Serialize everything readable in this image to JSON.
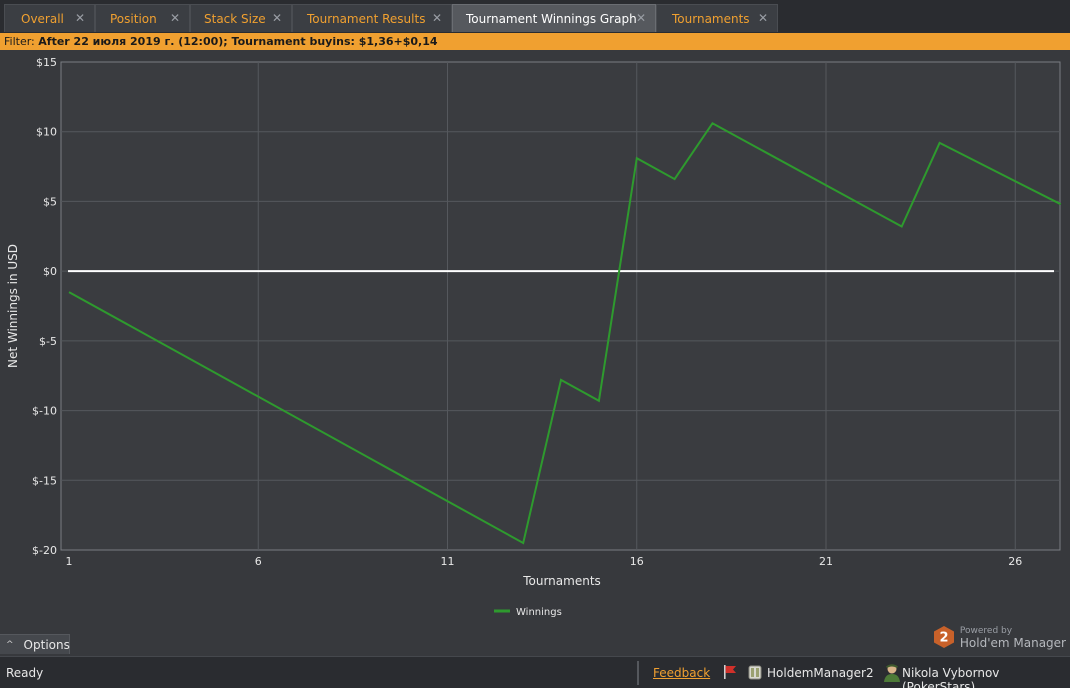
{
  "tabs": [
    {
      "label": "Overall",
      "active": false
    },
    {
      "label": "Position",
      "active": false
    },
    {
      "label": "Stack Size",
      "active": false
    },
    {
      "label": "Tournament Results",
      "active": false
    },
    {
      "label": "Tournament Winnings Graph",
      "active": true
    },
    {
      "label": "Tournaments",
      "active": false
    }
  ],
  "tab_close_glyph": "✕",
  "filter": {
    "prefix": "Filter:",
    "text": "After 22 июля 2019 г. (12:00); Tournament buyins: $1,36+$0,14"
  },
  "chart_data": {
    "type": "line",
    "xlabel": "Tournaments",
    "ylabel": "Net Winnings in USD",
    "xlim": [
      1,
      27.5
    ],
    "ylim": [
      -20,
      15
    ],
    "x_ticks": [
      1,
      6,
      11,
      16,
      21,
      26
    ],
    "y_ticks": [
      15,
      10,
      5,
      0,
      -5,
      -10,
      -15,
      -20
    ],
    "y_tick_labels": [
      "$15",
      "$10",
      "$5",
      "$0",
      "$-5",
      "$-10",
      "$-15",
      "$-20"
    ],
    "grid": true,
    "legend_position": "bottom-center",
    "zero_line_color": "#ffffff",
    "series": [
      {
        "name": "Winnings",
        "color": "#2e9a2e",
        "x": [
          1,
          13,
          14,
          15,
          16,
          17,
          18,
          23,
          24,
          27.2
        ],
        "y": [
          -1.5,
          -19.5,
          -7.8,
          -9.3,
          8.1,
          6.6,
          10.6,
          3.2,
          9.2,
          4.8
        ]
      }
    ]
  },
  "options": {
    "label": "Options",
    "caret": "^"
  },
  "brand": {
    "powered": "Powered by",
    "product": "Hold'em Manager",
    "logo_text": "2"
  },
  "status": {
    "text": "Ready",
    "feedback": "Feedback",
    "database": "HoldemManager2",
    "user": "Nikola Vybornov (PokerStars)"
  }
}
